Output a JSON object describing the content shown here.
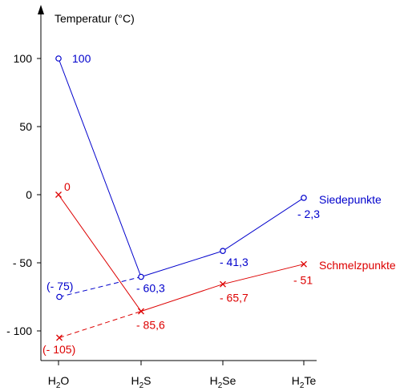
{
  "chart_data": {
    "type": "line",
    "title": "Temperatur (°C)",
    "ylim": [
      -120,
      140
    ],
    "y_ticks": [
      {
        "value": 100,
        "label": "100"
      },
      {
        "value": 50,
        "label": "50"
      },
      {
        "value": 0,
        "label": "0"
      },
      {
        "value": -50,
        "label": "- 50"
      },
      {
        "value": -100,
        "label": "- 100"
      }
    ],
    "categories": [
      {
        "base": "H",
        "sub": "2",
        "rest": "O"
      },
      {
        "base": "H",
        "sub": "2",
        "rest": "S"
      },
      {
        "base": "H",
        "sub": "2",
        "rest": "Se"
      },
      {
        "base": "H",
        "sub": "2",
        "rest": "Te"
      }
    ],
    "series": [
      {
        "name": "Siedepunkte",
        "color": "#0000cc",
        "marker": "o",
        "measured": [
          100,
          -60.3,
          -41.3,
          -2.3
        ],
        "labels": [
          "100",
          "- 60,3",
          "- 41,3",
          "- 2,3"
        ],
        "extrapolated_value": -75,
        "extrapolated_label": "(- 75)"
      },
      {
        "name": "Schmelzpunkte",
        "color": "#dd0000",
        "marker": "x",
        "measured": [
          0,
          -85.6,
          -65.7,
          -51
        ],
        "labels": [
          "0",
          "- 85,6",
          "- 65,7",
          "- 51"
        ],
        "extrapolated_value": -105,
        "extrapolated_label": "(- 105)"
      }
    ],
    "grid": false,
    "legend": "inline labels at right end of each series"
  }
}
